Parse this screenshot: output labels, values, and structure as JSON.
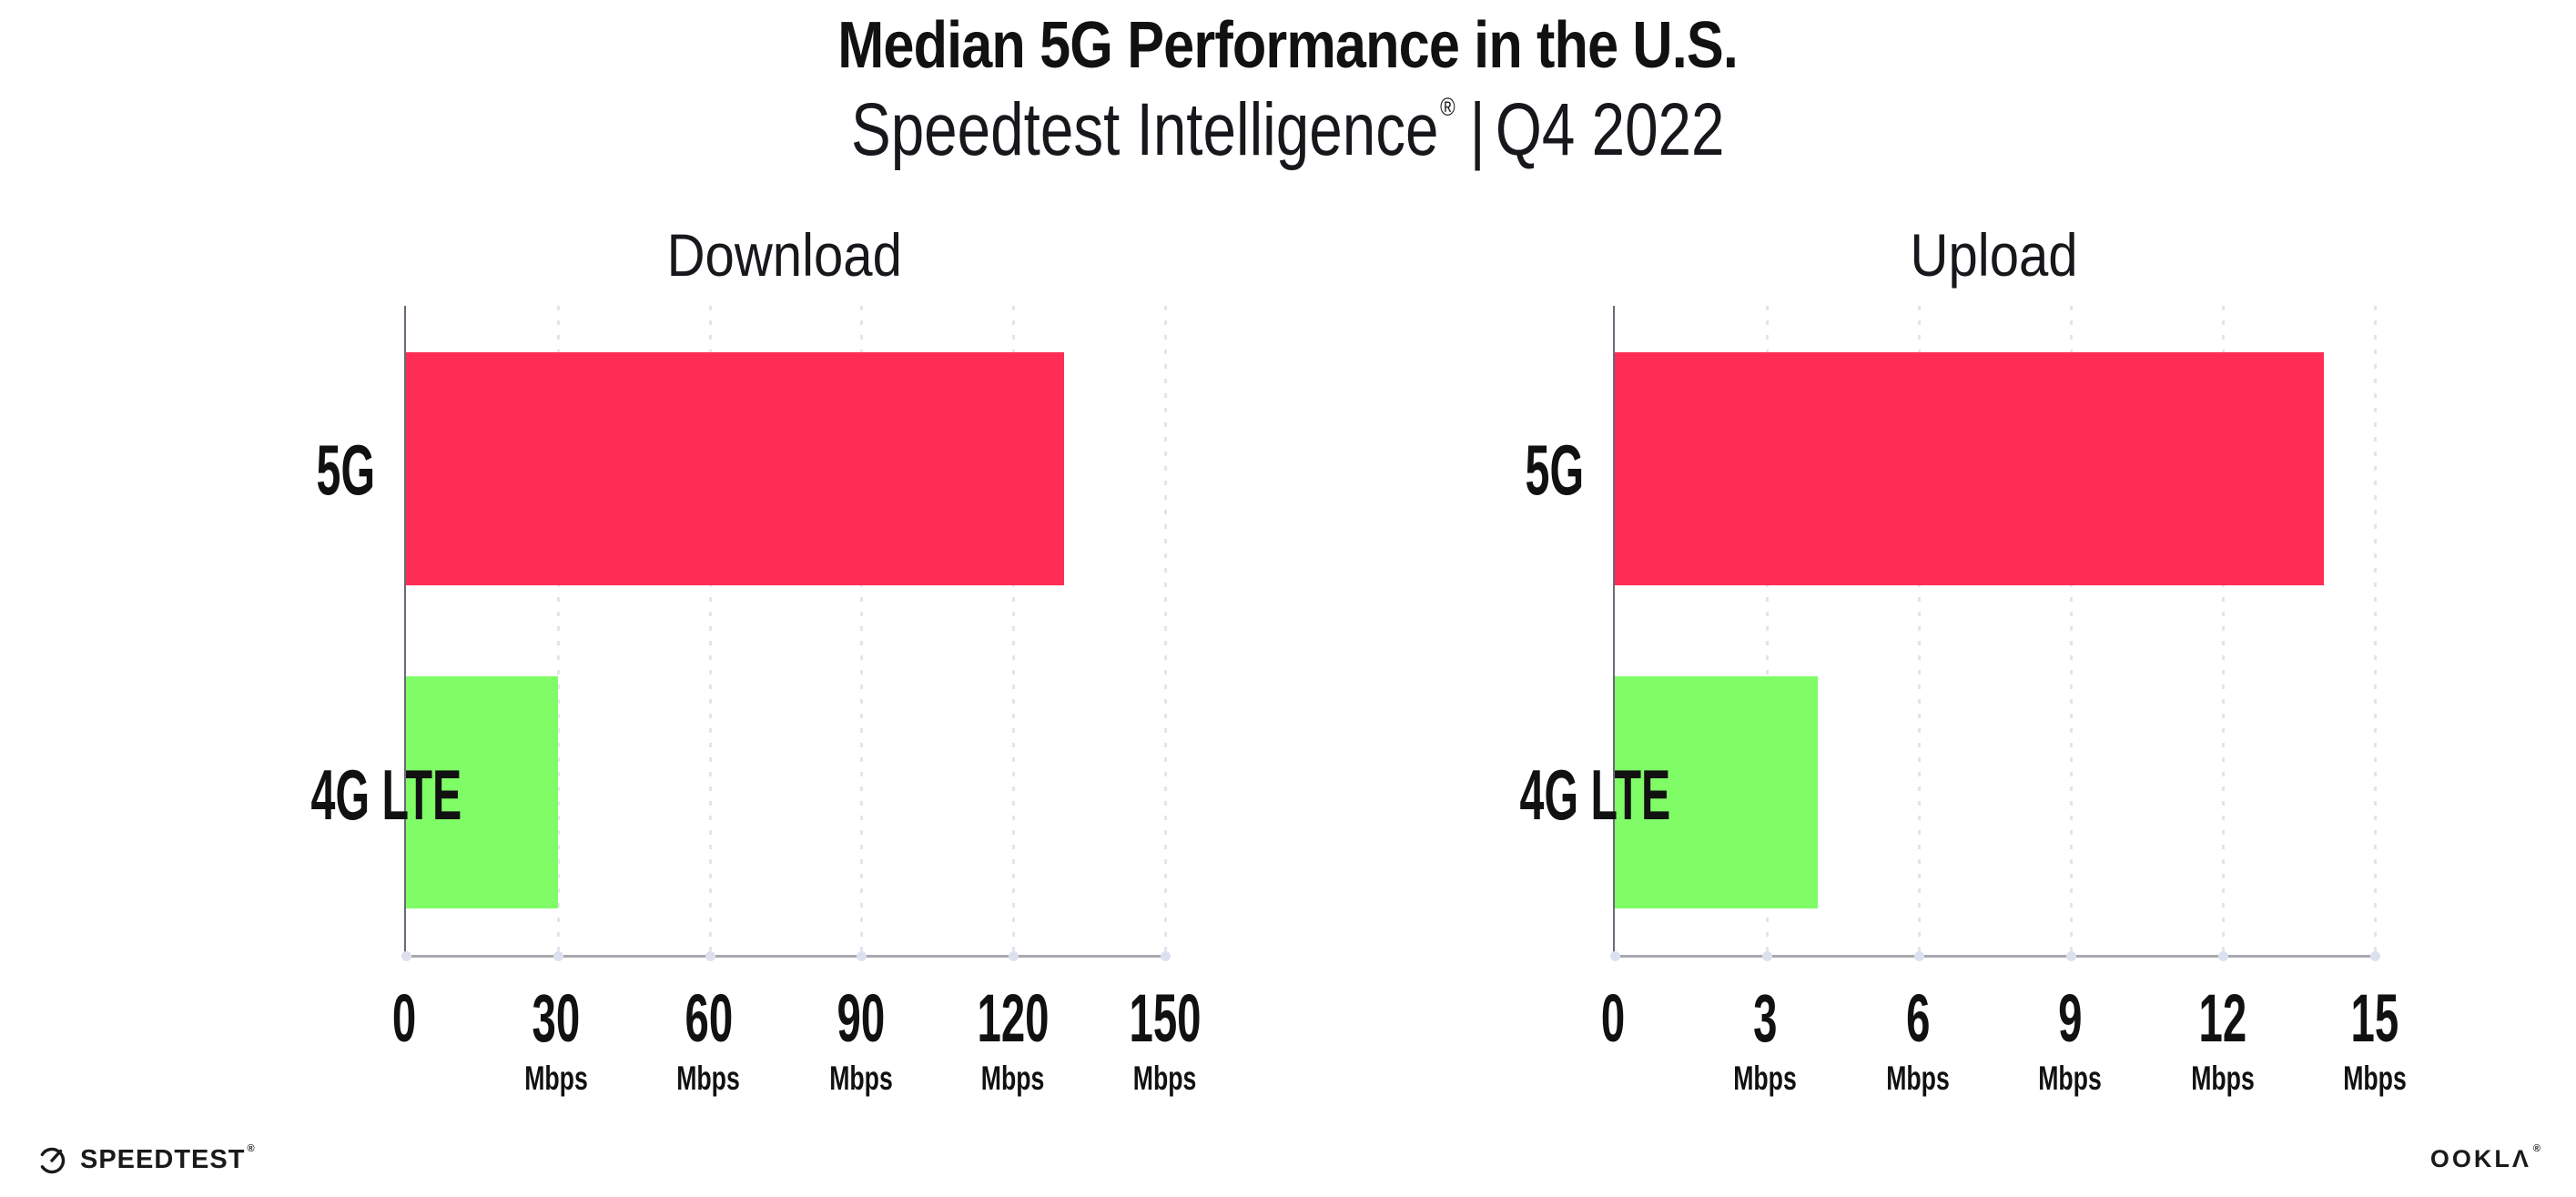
{
  "header": {
    "title": "Median 5G Performance in the U.S.",
    "subtitle_product": "Speedtest Intelligence",
    "subtitle_reg": "®",
    "subtitle_separator": "|",
    "subtitle_period": "Q4 2022"
  },
  "chart_data": [
    {
      "type": "bar",
      "orientation": "horizontal",
      "title": "Download",
      "categories": [
        "5G",
        "4G LTE"
      ],
      "values": [
        130,
        30
      ],
      "unit": "Mbps",
      "xlim": [
        0,
        150
      ],
      "ticks": [
        0,
        30,
        60,
        90,
        120,
        150
      ],
      "bar_colors": [
        "#ff2d55",
        "#7ffc66"
      ],
      "grid": "dotted-vertical",
      "legend": "none"
    },
    {
      "type": "bar",
      "orientation": "horizontal",
      "title": "Upload",
      "categories": [
        "5G",
        "4G LTE"
      ],
      "values": [
        14,
        4
      ],
      "unit": "Mbps",
      "xlim": [
        0,
        15
      ],
      "ticks": [
        0,
        3,
        6,
        9,
        12,
        15
      ],
      "bar_colors": [
        "#ff2d55",
        "#7ffc66"
      ],
      "grid": "dotted-vertical",
      "legend": "none"
    }
  ],
  "footer": {
    "speedtest_logo_text": "SPEEDTEST",
    "speedtest_reg": "®",
    "ookla_logo_text": "OOKLΛ",
    "ookla_reg": "®"
  },
  "colors": {
    "bar_5g": "#ff2d55",
    "bar_4g_lte": "#7ffc66",
    "gridline": "#e3e4ee",
    "axis": "#a9a9af",
    "text": "#111111"
  }
}
